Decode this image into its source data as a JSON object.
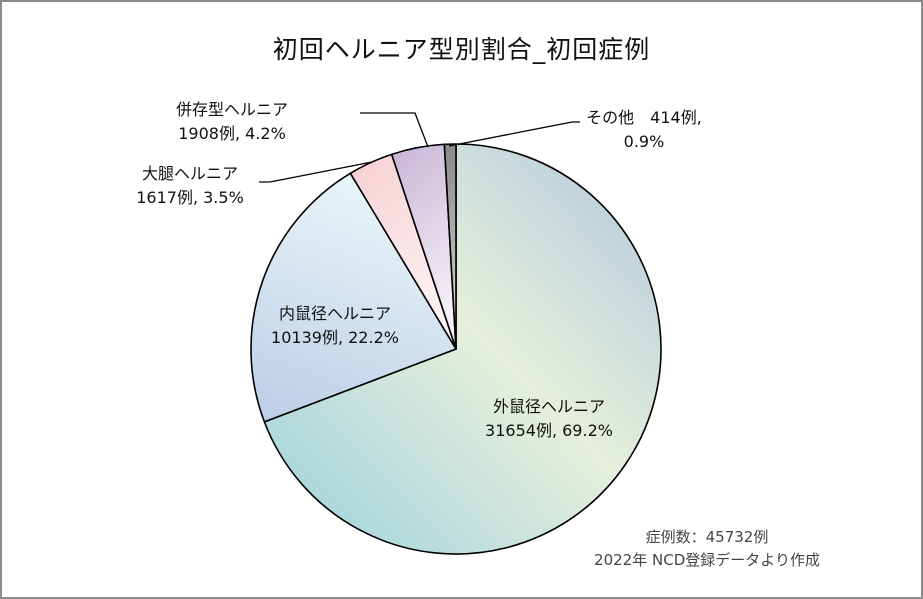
{
  "chart_data": {
    "type": "pie",
    "title": "初回ヘルニア型別割合_初回症例",
    "total_label": "症例数：45732例",
    "source": "2022年 NCD登録データより作成",
    "categories": [
      "外鼠径ヘルニア",
      "内鼠径ヘルニア",
      "大腿ヘルニア",
      "併存型ヘルニア",
      "その他"
    ],
    "values": [
      31654,
      10139,
      1617,
      1908,
      414
    ],
    "percentages": [
      69.2,
      22.2,
      3.5,
      4.2,
      0.9
    ],
    "start_angle": "12 o'clock, clockwise",
    "labels": [
      {
        "name": "外鼠径ヘルニア",
        "detail": "31654例, 69.2%"
      },
      {
        "name": "内鼠径ヘルニア",
        "detail": "10139例, 22.2%"
      },
      {
        "name": "大腿ヘルニア",
        "detail": "1617例, 3.5%"
      },
      {
        "name": "併存型ヘルニア",
        "detail": "1908例, 4.2%"
      },
      {
        "name": "その他　414例,",
        "detail": "0.9%"
      }
    ],
    "colors": [
      "#c8e2d8",
      "#cfe0ee",
      "#fbe2e4",
      "#e2d6ea",
      "#8c8c8c"
    ]
  },
  "chart": {
    "title": "初回ヘルニア型別割合_初回症例",
    "total": "症例数：45732例",
    "source": "2022年 NCD登録データより作成"
  }
}
